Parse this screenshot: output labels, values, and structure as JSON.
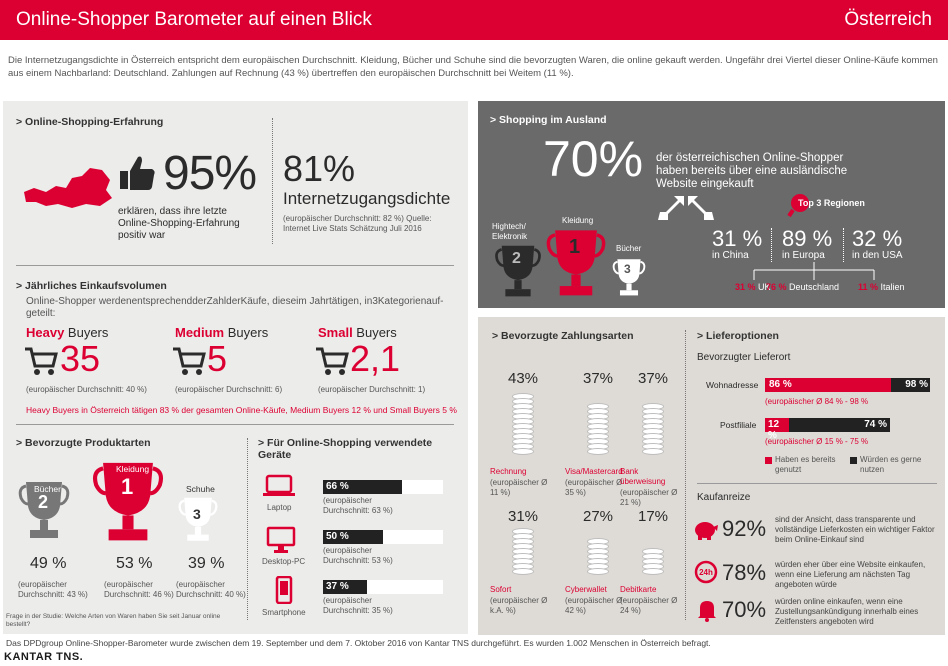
{
  "header": {
    "title": "Online-Shopper Barometer auf einen Blick",
    "country": "Österreich"
  },
  "intro": "Die Internetzugangsdichte in Österreich entspricht dem europäischen Durchschnitt. Kleidung, Bücher und Schuhe sind die bevorzugten Waren, die online gekauft werden. Ungefähr drei Viertel dieser Online-Käufe kommen aus einem Nachbarland: Deutschland. Zahlungen auf Rechnung (43 %) übertreffen den europäischen Durchschnitt bei Weitem (11 %).",
  "experience": {
    "heading": "> Online-Shopping-Erfahrung",
    "pct": "95%",
    "desc": "erklären, dass ihre letzte Online-Shopping-Erfahrung positiv war",
    "internet_pct": "81%",
    "internet_label": "Internetzugangsdichte",
    "internet_note": "(europäischer Durchschnitt: 82 %) Quelle: Internet Live Stats Schätzung Juli 2016"
  },
  "volume": {
    "heading": "> Jährliches Einkaufsvolumen",
    "desc": "Online-Shopper werdenentsprechendderZahlderKäufe, dieseim Jahrtätigen, in3Kategorienauf-geteilt:",
    "heavy": {
      "label_a": "Heavy",
      "label_b": " Buyers",
      "value": "35",
      "note": "(europäischer Durchschnitt: 40 %)"
    },
    "medium": {
      "label_a": "Medium",
      "label_b": " Buyers",
      "value": "5",
      "note": "(europäischer Durchschnitt: 6)"
    },
    "small": {
      "label_a": "Small",
      "label_b": " Buyers",
      "value": "2,1",
      "note": "(europäischer Durchschnitt: 1)"
    },
    "footer": "Heavy Buyers in Österreich tätigen 83 % der gesamten Online-Käufe, Medium Buyers 12 % und Small Buyers 5 %"
  },
  "products": {
    "heading": "> Bevorzugte Produktarten",
    "items": [
      {
        "name": "Bücher",
        "rank": "2",
        "pct": "49 %",
        "note": "(europäischer Durchschnitt: 43 %)"
      },
      {
        "name": "Kleidung",
        "rank": "1",
        "pct": "53 %",
        "note": "(europäischer Durchschnitt: 46 %)"
      },
      {
        "name": "Schuhe",
        "rank": "3",
        "pct": "39 %",
        "note": "(europäischer Durchschnitt: 40 %)"
      }
    ],
    "footnote": "Frage in der Studie: Welche Arten von Waren haben Sie seit Januar online bestellt?"
  },
  "devices": {
    "heading": "> Für Online-Shopping verwendete Geräte",
    "items": [
      {
        "name": "Laptop",
        "pct": "66 %",
        "value": 66,
        "note": "(europäischer Durchschnitt: 63 %)"
      },
      {
        "name": "Desktop-PC",
        "pct": "50 %",
        "value": 50,
        "note": "(europäischer Durchschnitt: 53 %)"
      },
      {
        "name": "Smartphone",
        "pct": "37 %",
        "value": 37,
        "note": "(europäischer Durchschnitt: 35 %)"
      }
    ]
  },
  "abroad": {
    "heading": "> Shopping im Ausland",
    "pct": "70%",
    "desc": "der österreichischen Online-Shopper haben bereits über eine ausländische Website eingekauft",
    "top3": "Top 3 Regionen",
    "cats": [
      {
        "name": "Hightech/ Elektronik",
        "rank": "2"
      },
      {
        "name": "Kleidung",
        "rank": "1"
      },
      {
        "name": "Bücher",
        "rank": "3"
      }
    ],
    "regions": [
      {
        "pct": "31 %",
        "name": "in China"
      },
      {
        "pct": "89 %",
        "name": "in Europa"
      },
      {
        "pct": "32 %",
        "name": "in den USA"
      }
    ],
    "countries": [
      {
        "pct": "31 %",
        "name": "UK"
      },
      {
        "pct": "76 %",
        "name": "Deutschland"
      },
      {
        "pct": "11 %",
        "name": "Italien"
      }
    ]
  },
  "payment": {
    "heading": "> Bevorzugte Zahlungsarten",
    "items": [
      {
        "pct": "43%",
        "name": "Rechnung",
        "note": "(europäischer Ø 11 %)",
        "coins": 12
      },
      {
        "pct": "37%",
        "name": "Visa/Mastercard",
        "note": "(europäischer Ø 35 %)",
        "coins": 10
      },
      {
        "pct": "37%",
        "name": "Bank überweisung",
        "note": "(europäischer Ø 21 %)",
        "coins": 10
      },
      {
        "pct": "31%",
        "name": "Sofort",
        "note": "(europäischer Ø k.A. %)",
        "coins": 9
      },
      {
        "pct": "27%",
        "name": "Cyberwallet",
        "note": "(europäischer Ø 42 %)",
        "coins": 7
      },
      {
        "pct": "17%",
        "name": "Debitkarte",
        "note": "(europäischer Ø 24 %)",
        "coins": 5
      }
    ]
  },
  "delivery": {
    "heading": "> Lieferoptionen",
    "sub": "Bevorzugter Lieferort",
    "rows": [
      {
        "label": "Wohnadresse",
        "a": "86 %",
        "b": "98 %",
        "a_val": 86,
        "note": "(europäischer Ø 84 % - 98 %"
      },
      {
        "label": "Postfiliale",
        "a": "12 %",
        "b": "74 %",
        "a_val": 12,
        "note": "(europäischer Ø 15 % - 75 %"
      }
    ],
    "legend_a": "Haben es bereits genutzt",
    "legend_b": "Würden es gerne nutzen"
  },
  "incentives": {
    "heading": "Kaufanreize",
    "items": [
      {
        "pct": "92%",
        "text": "sind der Ansicht, dass transparente und vollständige Lieferkosten ein wichtiger Faktor beim Online-Einkauf sind"
      },
      {
        "pct": "78%",
        "text": "würden eher über eine Website einkaufen, wenn eine Lieferung am nächsten Tag angeboten würde"
      },
      {
        "pct": "70%",
        "text": "würden online einkaufen, wenn eine Zustellungsankündigung innerhalb eines Zeitfensters angeboten wird"
      }
    ]
  },
  "footer": {
    "text": "Das DPDgroup Online-Shopper-Barometer wurde zwischen dem 19. September und dem 7. Oktober 2016 von Kantar TNS durchgeführt. Es wurden 1.002 Menschen in Österreich befragt.",
    "logo": "KANTAR TNS."
  }
}
